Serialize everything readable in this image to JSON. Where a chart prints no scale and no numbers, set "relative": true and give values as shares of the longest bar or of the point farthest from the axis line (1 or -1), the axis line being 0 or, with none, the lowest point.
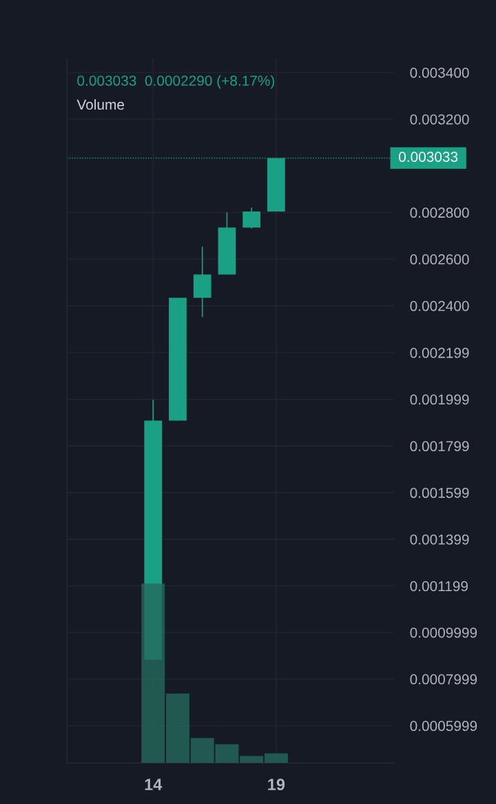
{
  "chart_data": [
    {
      "type": "candlestick",
      "subtitle": "0.003033  0.0002290 (+8.17%)",
      "x": [
        14,
        15,
        16,
        17,
        18,
        19
      ],
      "ohlc": [
        [
          0.000883,
          0.001997,
          0.000883,
          0.001908
        ],
        [
          0.001908,
          0.002434,
          0.001908,
          0.002434
        ],
        [
          0.002434,
          0.002653,
          0.002351,
          0.002534
        ],
        [
          0.002534,
          0.0028,
          0.002534,
          0.002735
        ],
        [
          0.002735,
          0.002821,
          0.002731,
          0.002804
        ],
        [
          0.002804,
          0.003033,
          0.002804,
          0.003033
        ]
      ],
      "color": "#1aa085",
      "xlim": [
        10.5,
        23.8
      ],
      "xticks": [
        14,
        19
      ],
      "ylim": [
        0.00044,
        0.003459
      ],
      "yticks": [
        {
          "value": 0.0034,
          "label": "0.003400"
        },
        {
          "value": 0.0032,
          "label": "0.003200"
        },
        {
          "value": 0.0028,
          "label": "0.002800"
        },
        {
          "value": 0.0026,
          "label": "0.002600"
        },
        {
          "value": 0.0024,
          "label": "0.002400"
        },
        {
          "value": 0.002199,
          "label": "0.002199"
        },
        {
          "value": 0.001999,
          "label": "0.001999"
        },
        {
          "value": 0.001799,
          "label": "0.001799"
        },
        {
          "value": 0.001599,
          "label": "0.001599"
        },
        {
          "value": 0.001399,
          "label": "0.001399"
        },
        {
          "value": 0.001199,
          "label": "0.001199"
        },
        {
          "value": 0.0009999,
          "label": "0.0009999"
        },
        {
          "value": 0.0007999,
          "label": "0.0007999"
        },
        {
          "value": 0.0005999,
          "label": "0.0005999"
        }
      ],
      "ref_lines": [
        {
          "axis": "y",
          "value": 0.003033,
          "label": "0.003033",
          "color": "#1aa085",
          "line_style": "dotted"
        }
      ],
      "grid": true,
      "annotations": [
        "Volume"
      ]
    },
    {
      "type": "bar",
      "relative": true,
      "categories": [
        null,
        null,
        null,
        null,
        null,
        null
      ],
      "values": [
        1,
        0.386,
        0.139,
        0.104,
        0.039,
        0.054
      ],
      "color": "#24695c"
    }
  ]
}
